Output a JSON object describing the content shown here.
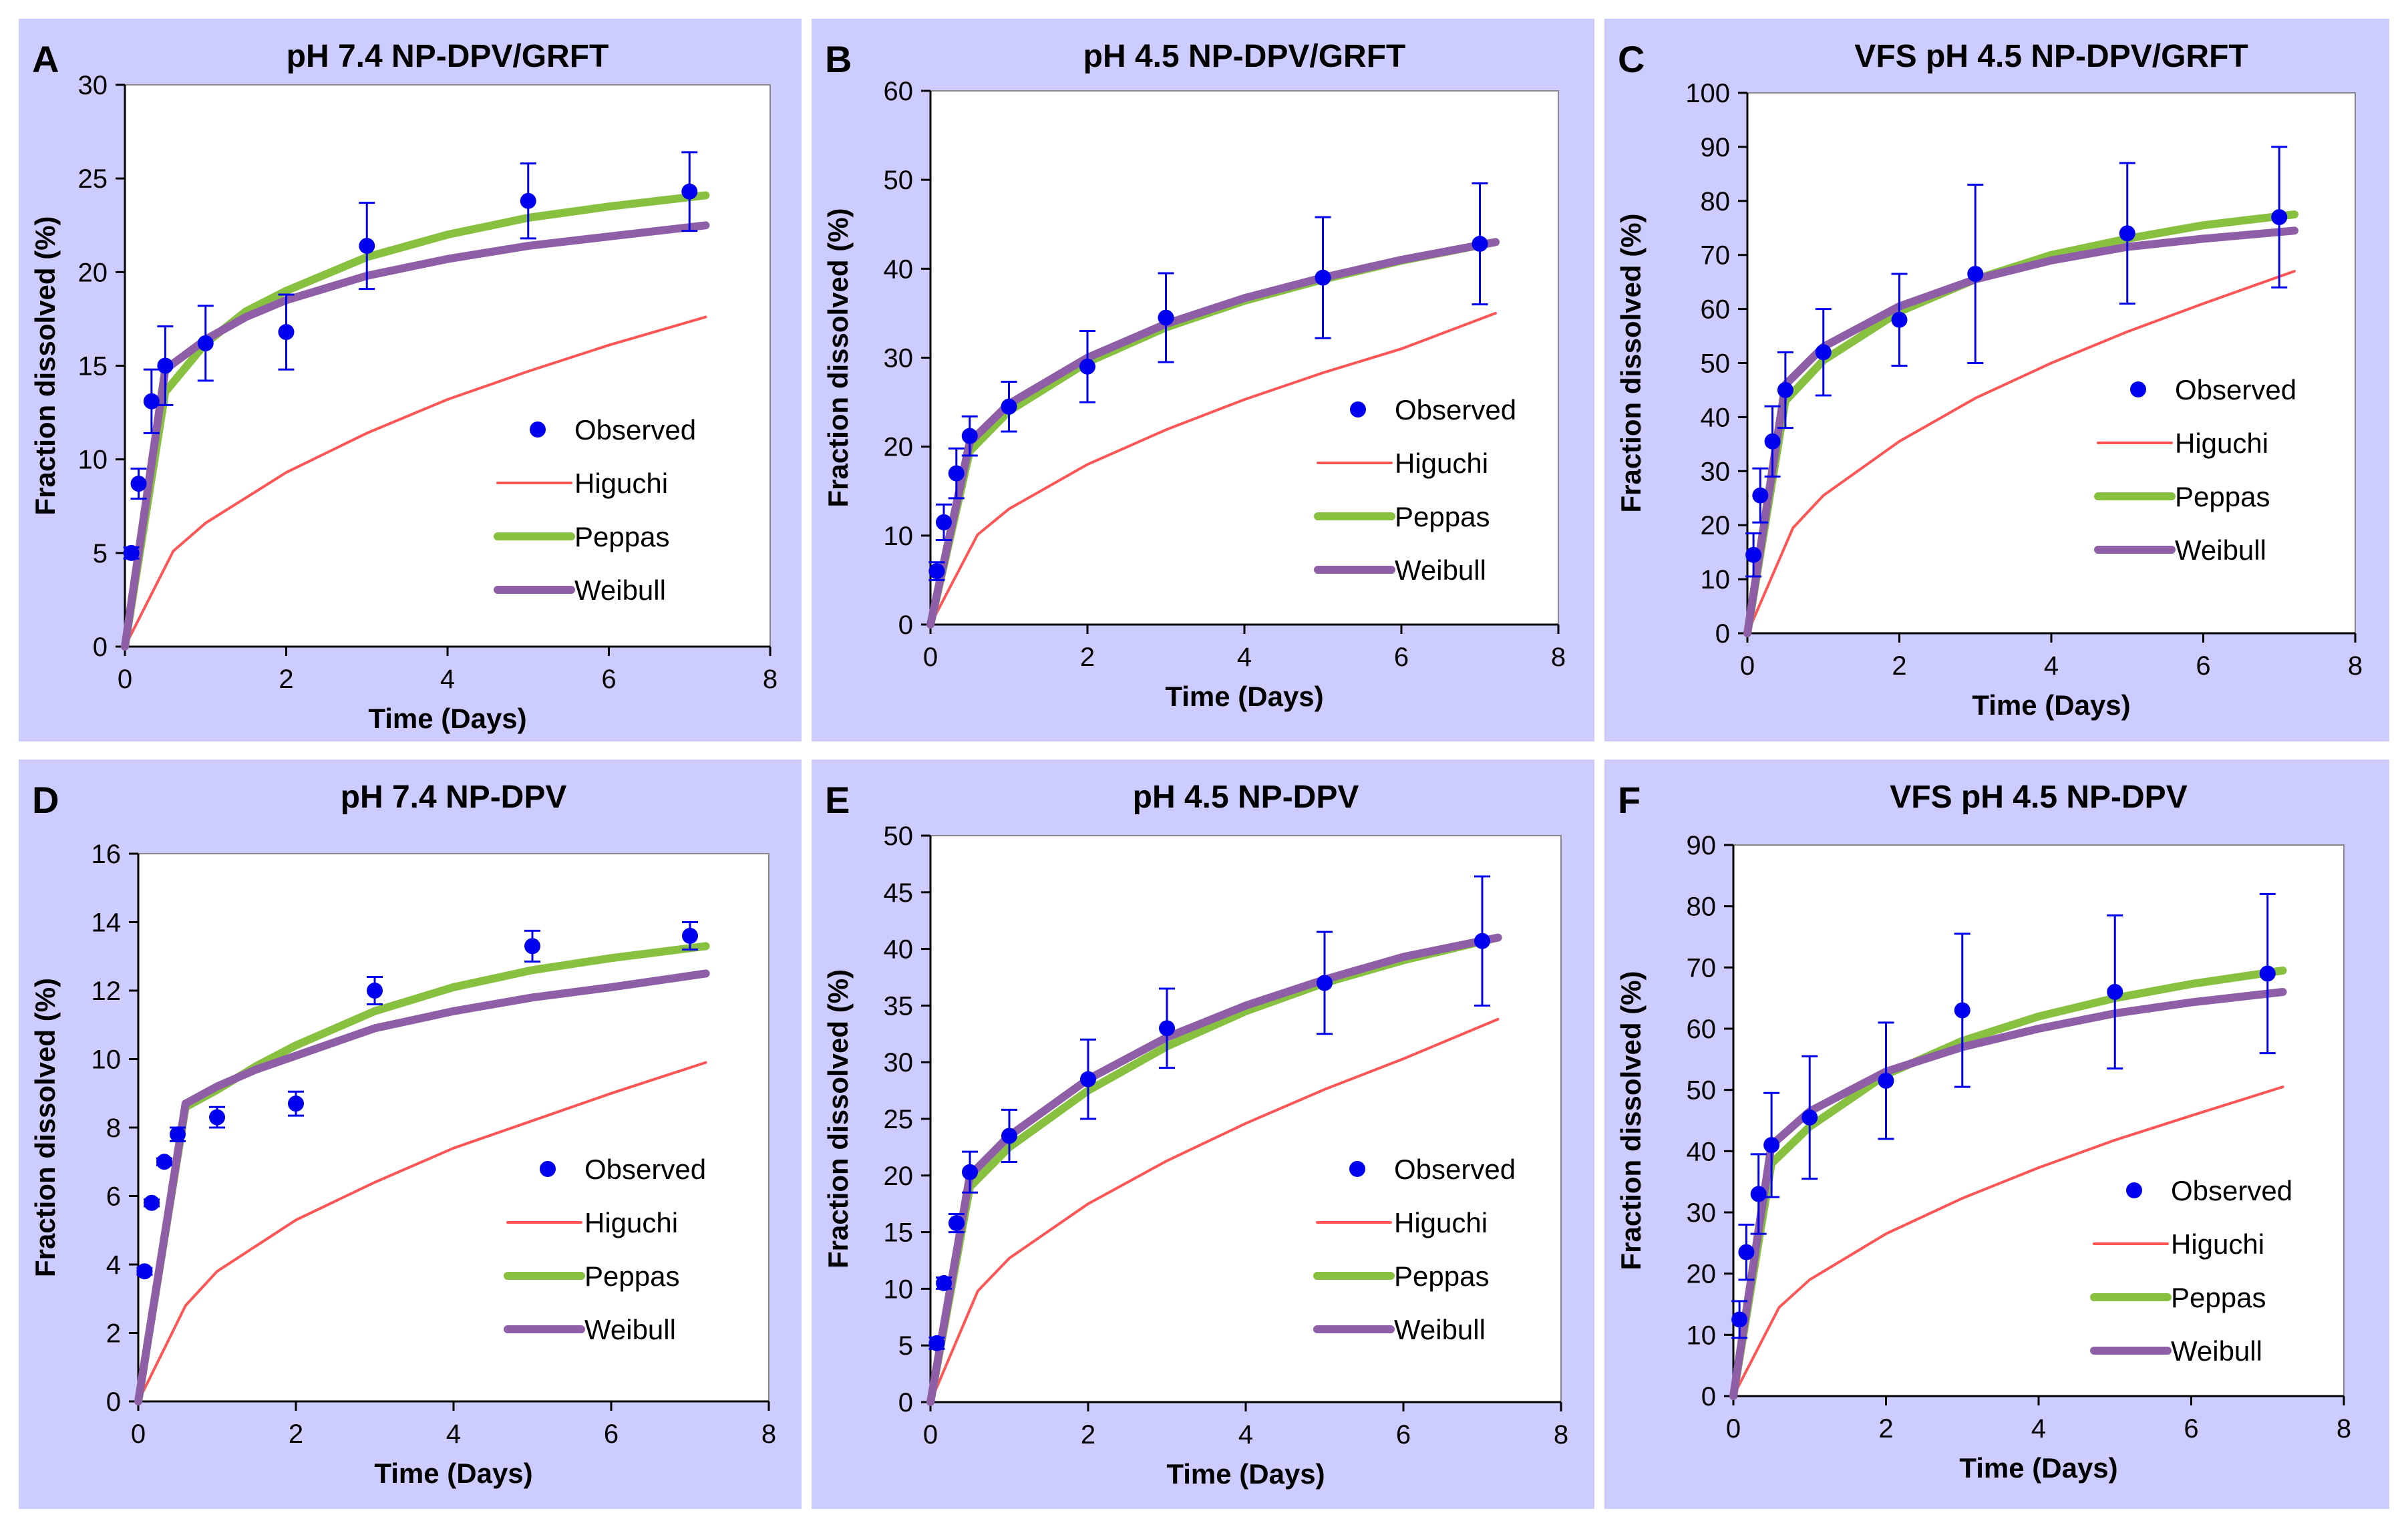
{
  "chart_data": [
    {
      "type": "line",
      "panel_letter": "A",
      "title": "pH 7.4  NP-DPV/GRFT",
      "xlabel": "Time (Days)",
      "ylabel": "Fraction dissolved (%)",
      "xlim": [
        0,
        8
      ],
      "ylim": [
        0,
        30
      ],
      "xticks": [
        0,
        2,
        4,
        6,
        8
      ],
      "yticks": [
        0,
        5,
        10,
        15,
        20,
        25,
        30
      ],
      "grid": false,
      "legend_position": "bottom-right",
      "observed": {
        "name": "Observed",
        "x": [
          0.08,
          0.17,
          0.33,
          0.5,
          1,
          2,
          3,
          5,
          7
        ],
        "y": [
          5.0,
          8.7,
          13.1,
          15.0,
          16.2,
          16.8,
          21.4,
          23.8,
          24.3
        ],
        "err": [
          0.3,
          0.8,
          1.7,
          2.1,
          2.0,
          2.0,
          2.3,
          2.0,
          2.1
        ]
      },
      "series": [
        {
          "name": "Higuchi",
          "x": [
            0,
            0.6,
            1,
            2,
            3,
            4,
            5,
            6,
            7.2
          ],
          "y": [
            0,
            5.1,
            6.6,
            9.3,
            11.4,
            13.2,
            14.7,
            16.1,
            17.6
          ]
        },
        {
          "name": "Peppas",
          "x": [
            0,
            0.5,
            1,
            1.5,
            2,
            3,
            4,
            5,
            6,
            7.2
          ],
          "y": [
            0,
            13.6,
            16.2,
            17.9,
            19.0,
            20.8,
            22.0,
            22.9,
            23.5,
            24.1
          ]
        },
        {
          "name": "Weibull",
          "x": [
            0,
            0.5,
            1,
            1.5,
            2,
            3,
            4,
            5,
            6,
            7.2
          ],
          "y": [
            0,
            14.8,
            16.4,
            17.6,
            18.5,
            19.8,
            20.7,
            21.4,
            21.9,
            22.5
          ]
        }
      ]
    },
    {
      "type": "line",
      "panel_letter": "B",
      "title": "pH 4.5 NP-DPV/GRFT",
      "xlabel": "Time (Days)",
      "ylabel": "Fraction dissolved (%)",
      "xlim": [
        0,
        8
      ],
      "ylim": [
        0,
        60
      ],
      "xticks": [
        0,
        2,
        4,
        6,
        8
      ],
      "yticks": [
        0,
        10,
        20,
        30,
        40,
        50,
        60
      ],
      "grid": false,
      "legend_position": "bottom-right",
      "observed": {
        "name": "Observed",
        "x": [
          0.08,
          0.17,
          0.33,
          0.5,
          1,
          2,
          3,
          5,
          7
        ],
        "y": [
          6.0,
          11.5,
          17.0,
          21.2,
          24.5,
          29.0,
          34.5,
          39.0,
          42.8
        ],
        "err": [
          1.0,
          2.0,
          2.8,
          2.2,
          2.8,
          4.0,
          5.0,
          6.8,
          6.8
        ]
      },
      "series": [
        {
          "name": "Higuchi",
          "x": [
            0,
            0.6,
            1,
            2,
            3,
            4,
            5,
            6,
            7.2
          ],
          "y": [
            0,
            10.1,
            13.0,
            18.0,
            21.9,
            25.3,
            28.3,
            31.0,
            35.0
          ]
        },
        {
          "name": "Peppas",
          "x": [
            0,
            0.5,
            1,
            2,
            3,
            4,
            5,
            6,
            7.2
          ],
          "y": [
            0,
            19.5,
            24.0,
            29.5,
            33.4,
            36.4,
            38.8,
            40.9,
            43.0
          ]
        },
        {
          "name": "Weibull",
          "x": [
            0,
            0.5,
            1,
            2,
            3,
            4,
            5,
            6,
            7.2
          ],
          "y": [
            0,
            20.5,
            24.8,
            30.0,
            33.8,
            36.7,
            39.0,
            41.0,
            43.0
          ]
        }
      ]
    },
    {
      "type": "line",
      "panel_letter": "C",
      "title": "VFS pH 4.5 NP-DPV/GRFT",
      "xlabel": "Time (Days)",
      "ylabel": "Fraction dissolved  (%)",
      "xlim": [
        0,
        8
      ],
      "ylim": [
        0,
        100
      ],
      "xticks": [
        0,
        2,
        4,
        6,
        8
      ],
      "yticks": [
        0,
        10,
        20,
        30,
        40,
        50,
        60,
        70,
        80,
        90,
        100
      ],
      "grid": false,
      "legend_position": "bottom-right",
      "observed": {
        "name": "Observed",
        "x": [
          0.08,
          0.17,
          0.33,
          0.5,
          1,
          2,
          3,
          5,
          7
        ],
        "y": [
          14.5,
          25.5,
          35.5,
          45.0,
          52.0,
          58.0,
          66.5,
          74.0,
          77.0
        ],
        "err": [
          4.0,
          5.0,
          6.5,
          7.0,
          8.0,
          8.5,
          16.5,
          13.0,
          13.0
        ]
      },
      "series": [
        {
          "name": "Higuchi",
          "x": [
            0,
            0.6,
            1,
            2,
            3,
            4,
            5,
            6,
            7.2
          ],
          "y": [
            0,
            19.5,
            25.5,
            35.5,
            43.5,
            50.0,
            55.8,
            61.0,
            67.0
          ]
        },
        {
          "name": "Peppas",
          "x": [
            0,
            0.5,
            1,
            2,
            3,
            4,
            5,
            6,
            7.2
          ],
          "y": [
            0,
            43.0,
            50.5,
            59.5,
            65.5,
            70.0,
            73.0,
            75.5,
            77.5
          ]
        },
        {
          "name": "Weibull",
          "x": [
            0,
            0.5,
            1,
            2,
            3,
            4,
            5,
            6,
            7.2
          ],
          "y": [
            0,
            46.0,
            53.0,
            60.5,
            65.5,
            69.0,
            71.5,
            73.0,
            74.5
          ]
        }
      ]
    },
    {
      "type": "line",
      "panel_letter": "D",
      "title": "pH 7.4 NP-DPV",
      "xlabel": "Time (Days)",
      "ylabel": "Fraction dissolved (%)",
      "xlim": [
        0,
        8
      ],
      "ylim": [
        0,
        16
      ],
      "xticks": [
        0,
        2,
        4,
        6,
        8
      ],
      "yticks": [
        0,
        2,
        4,
        6,
        8,
        10,
        12,
        14,
        16
      ],
      "grid": false,
      "legend_position": "bottom-right",
      "observed": {
        "name": "Observed",
        "x": [
          0.08,
          0.17,
          0.33,
          0.5,
          1,
          2,
          3,
          5,
          7
        ],
        "y": [
          3.8,
          5.8,
          7.0,
          7.8,
          8.3,
          8.7,
          12.0,
          13.3,
          13.6
        ],
        "err": [
          0.1,
          0.1,
          0.1,
          0.2,
          0.3,
          0.35,
          0.4,
          0.45,
          0.4
        ]
      },
      "series": [
        {
          "name": "Higuchi",
          "x": [
            0,
            0.6,
            1,
            2,
            3,
            4,
            5,
            6,
            7.2
          ],
          "y": [
            0,
            2.8,
            3.8,
            5.3,
            6.4,
            7.4,
            8.2,
            9.0,
            9.9
          ]
        },
        {
          "name": "Peppas",
          "x": [
            0,
            0.6,
            1,
            1.5,
            2,
            3,
            4,
            5,
            6,
            7.2
          ],
          "y": [
            0,
            8.6,
            9.1,
            9.8,
            10.4,
            11.4,
            12.1,
            12.6,
            12.95,
            13.3
          ]
        },
        {
          "name": "Weibull",
          "x": [
            0,
            0.6,
            1,
            1.5,
            2,
            3,
            4,
            5,
            6,
            7.2
          ],
          "y": [
            0,
            8.7,
            9.2,
            9.7,
            10.1,
            10.9,
            11.4,
            11.8,
            12.1,
            12.5
          ]
        }
      ]
    },
    {
      "type": "line",
      "panel_letter": "E",
      "title": "pH 4.5  NP-DPV",
      "xlabel": "Time (Days)",
      "ylabel": "Fraction dissolved (%)",
      "xlim": [
        0,
        8
      ],
      "ylim": [
        0,
        50
      ],
      "xticks": [
        0,
        2,
        4,
        6,
        8
      ],
      "yticks": [
        0,
        5,
        10,
        15,
        20,
        25,
        30,
        35,
        40,
        45,
        50
      ],
      "grid": false,
      "legend_position": "bottom-right",
      "observed": {
        "name": "Observed",
        "x": [
          0.08,
          0.17,
          0.33,
          0.5,
          1,
          2,
          3,
          5,
          7
        ],
        "y": [
          5.2,
          10.5,
          15.8,
          20.3,
          23.5,
          28.5,
          33.0,
          37.0,
          40.7
        ],
        "err": [
          0.5,
          0.5,
          0.8,
          1.8,
          2.3,
          3.5,
          3.5,
          4.5,
          5.7
        ]
      },
      "series": [
        {
          "name": "Higuchi",
          "x": [
            0,
            0.6,
            1,
            2,
            3,
            4,
            5,
            6,
            7.2
          ],
          "y": [
            0,
            9.8,
            12.7,
            17.5,
            21.3,
            24.6,
            27.6,
            30.3,
            33.8
          ]
        },
        {
          "name": "Peppas",
          "x": [
            0,
            0.5,
            1,
            2,
            3,
            4,
            5,
            6,
            7.2
          ],
          "y": [
            0,
            19.0,
            22.5,
            27.5,
            31.4,
            34.5,
            37.0,
            39.0,
            41.0
          ]
        },
        {
          "name": "Weibull",
          "x": [
            0,
            0.5,
            1,
            2,
            3,
            4,
            5,
            6,
            7.2
          ],
          "y": [
            0,
            20.0,
            23.5,
            28.5,
            32.2,
            35.0,
            37.3,
            39.3,
            41.0
          ]
        }
      ]
    },
    {
      "type": "line",
      "panel_letter": "F",
      "title": "VFS pH 4.5 NP-DPV",
      "xlabel": "Time (Days)",
      "ylabel": "Fraction dissolved  (%)",
      "xlim": [
        0,
        8
      ],
      "ylim": [
        0,
        90
      ],
      "xticks": [
        0,
        2,
        4,
        6,
        8
      ],
      "yticks": [
        0,
        10,
        20,
        30,
        40,
        50,
        60,
        70,
        80,
        90
      ],
      "grid": false,
      "legend_position": "bottom-right",
      "observed": {
        "name": "Observed",
        "x": [
          0.08,
          0.17,
          0.33,
          0.5,
          1,
          2,
          3,
          5,
          7
        ],
        "y": [
          12.5,
          23.5,
          33.0,
          41.0,
          45.5,
          51.5,
          63.0,
          66.0,
          69.0
        ],
        "err": [
          3.0,
          4.5,
          6.5,
          8.5,
          10.0,
          9.5,
          12.5,
          12.5,
          13.0
        ]
      },
      "series": [
        {
          "name": "Higuchi",
          "x": [
            0,
            0.6,
            1,
            2,
            3,
            4,
            5,
            6,
            7.2
          ],
          "y": [
            0,
            14.5,
            19.0,
            26.5,
            32.3,
            37.3,
            41.8,
            45.8,
            50.5
          ]
        },
        {
          "name": "Peppas",
          "x": [
            0,
            0.5,
            1,
            2,
            3,
            4,
            5,
            6,
            7.2
          ],
          "y": [
            0,
            38.0,
            44.0,
            52.5,
            58.0,
            62.0,
            65.0,
            67.3,
            69.5
          ]
        },
        {
          "name": "Weibull",
          "x": [
            0,
            0.5,
            1,
            2,
            3,
            4,
            5,
            6,
            7.2
          ],
          "y": [
            0,
            41.0,
            46.5,
            53.0,
            57.0,
            60.0,
            62.5,
            64.3,
            66.0
          ]
        }
      ]
    }
  ],
  "colors": {
    "panel_background": "#ccccff",
    "plot_background": "#ffffff",
    "observed": "#0000ee",
    "higuchi": "#ff5555",
    "peppas": "#88c040",
    "weibull": "#8e5fa6",
    "axis": "#000000"
  }
}
